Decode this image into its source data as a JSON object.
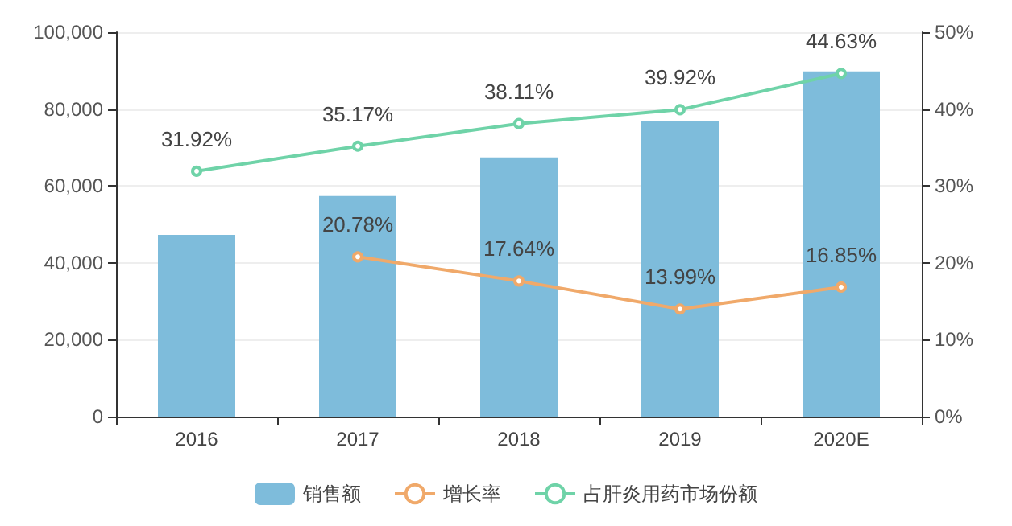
{
  "chart_data": {
    "type": "bar",
    "categories": [
      "2016",
      "2017",
      "2018",
      "2019",
      "2020E"
    ],
    "series": [
      {
        "name": "销售额",
        "color": "#7ebcdb",
        "values": [
          47300,
          57400,
          67400,
          76800,
          89800
        ]
      },
      {
        "name": "增长率",
        "type": "line",
        "axis": "y2",
        "color": "#f0a96a",
        "values": [
          null,
          20.78,
          17.64,
          13.99,
          16.85
        ],
        "value_labels": [
          null,
          "20.78%",
          "17.64%",
          "13.99%",
          "16.85%"
        ]
      },
      {
        "name": "占肝炎用药市场份额",
        "type": "line",
        "axis": "y2",
        "color": "#6fd3a8",
        "values": [
          31.92,
          35.17,
          38.11,
          39.92,
          44.63
        ],
        "value_labels": [
          "31.92%",
          "35.17%",
          "38.11%",
          "39.92%",
          "44.63%"
        ]
      }
    ],
    "ylim": [
      0,
      100000
    ],
    "yticks": [
      {
        "value": 0,
        "label": "0"
      },
      {
        "value": 20000,
        "label": "20,000"
      },
      {
        "value": 40000,
        "label": "40,000"
      },
      {
        "value": 60000,
        "label": "60,000"
      },
      {
        "value": 80000,
        "label": "80,000"
      },
      {
        "value": 100000,
        "label": "100,000"
      }
    ],
    "y2lim": [
      0,
      50
    ],
    "y2ticks": [
      {
        "value": 0,
        "label": "0%"
      },
      {
        "value": 10,
        "label": "10%"
      },
      {
        "value": 20,
        "label": "20%"
      },
      {
        "value": 30,
        "label": "30%"
      },
      {
        "value": 40,
        "label": "40%"
      },
      {
        "value": 50,
        "label": "50%"
      }
    ],
    "grid": "y",
    "legend": "bottom",
    "marker": "circle"
  }
}
